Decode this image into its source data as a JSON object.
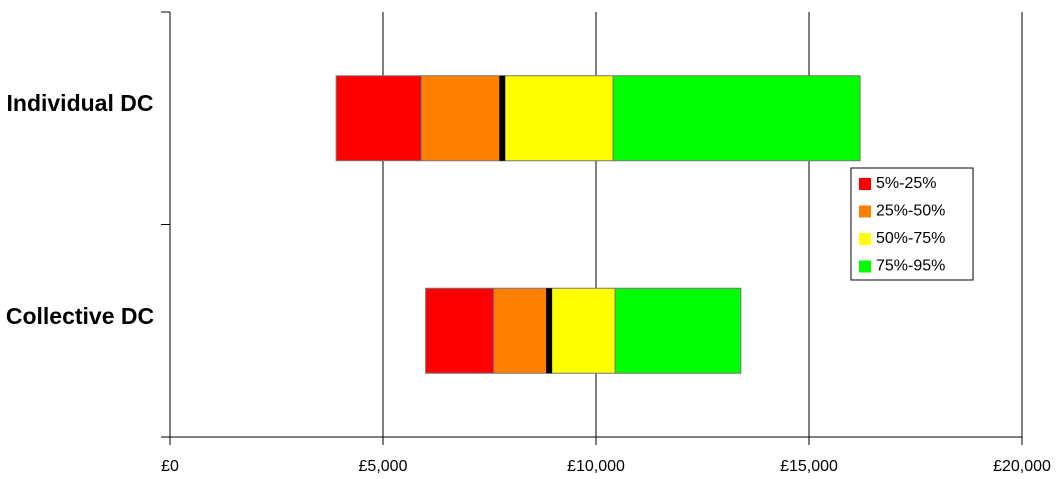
{
  "chart_data": {
    "type": "floating-bar",
    "categories": [
      "Individual DC",
      "Collective DC"
    ],
    "series": [
      {
        "name": "5%-25%",
        "color": "#ff0000",
        "values": [
          [
            3900,
            5900
          ],
          [
            6000,
            7600
          ]
        ]
      },
      {
        "name": "25%-50%",
        "color": "#ff8000",
        "values": [
          [
            5900,
            7800
          ],
          [
            7600,
            8900
          ]
        ]
      },
      {
        "name": "50%-75%",
        "color": "#ffff00",
        "values": [
          [
            7800,
            10400
          ],
          [
            8900,
            10450
          ]
        ]
      },
      {
        "name": "75%-95%",
        "color": "#00ff00",
        "values": [
          [
            10400,
            16200
          ],
          [
            10450,
            13400
          ]
        ]
      }
    ],
    "median_color": "#000000",
    "xlim": [
      0,
      20000
    ],
    "xticks": [
      {
        "value": 0,
        "label": "£0"
      },
      {
        "value": 5000,
        "label": "£5,000"
      },
      {
        "value": 10000,
        "label": "£10,000"
      },
      {
        "value": 15000,
        "label": "£15,000"
      },
      {
        "value": 20000,
        "label": "£20,000"
      }
    ],
    "grid": true,
    "legend": "right"
  }
}
